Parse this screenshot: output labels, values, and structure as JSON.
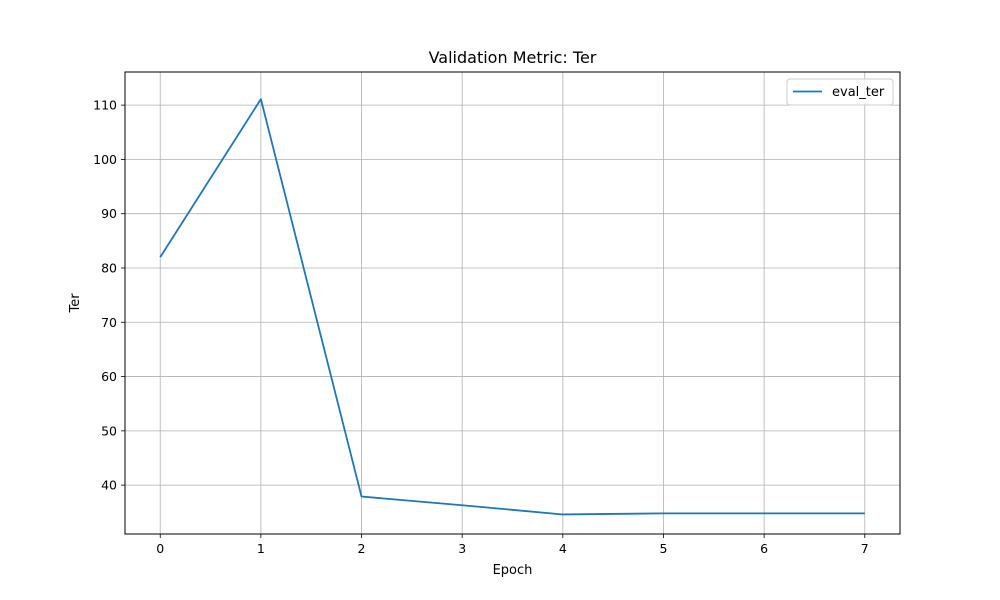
{
  "chart_data": {
    "type": "line",
    "title": "Validation Metric: Ter",
    "xlabel": "Epoch",
    "ylabel": "Ter",
    "x": [
      0,
      1,
      2,
      3,
      4,
      5,
      6,
      7
    ],
    "series": [
      {
        "name": "eval_ter",
        "color": "#1f77b4",
        "values": [
          82.0,
          111.1,
          37.9,
          36.3,
          34.6,
          34.8,
          34.8,
          34.8
        ]
      }
    ],
    "xlim": [
      -0.35,
      7.35
    ],
    "ylim": [
      31.0,
      116.1
    ],
    "xticks": [
      0,
      1,
      2,
      3,
      4,
      5,
      6,
      7
    ],
    "yticks": [
      40,
      50,
      60,
      70,
      80,
      90,
      100,
      110
    ],
    "grid": true,
    "legend_position": "upper right"
  }
}
